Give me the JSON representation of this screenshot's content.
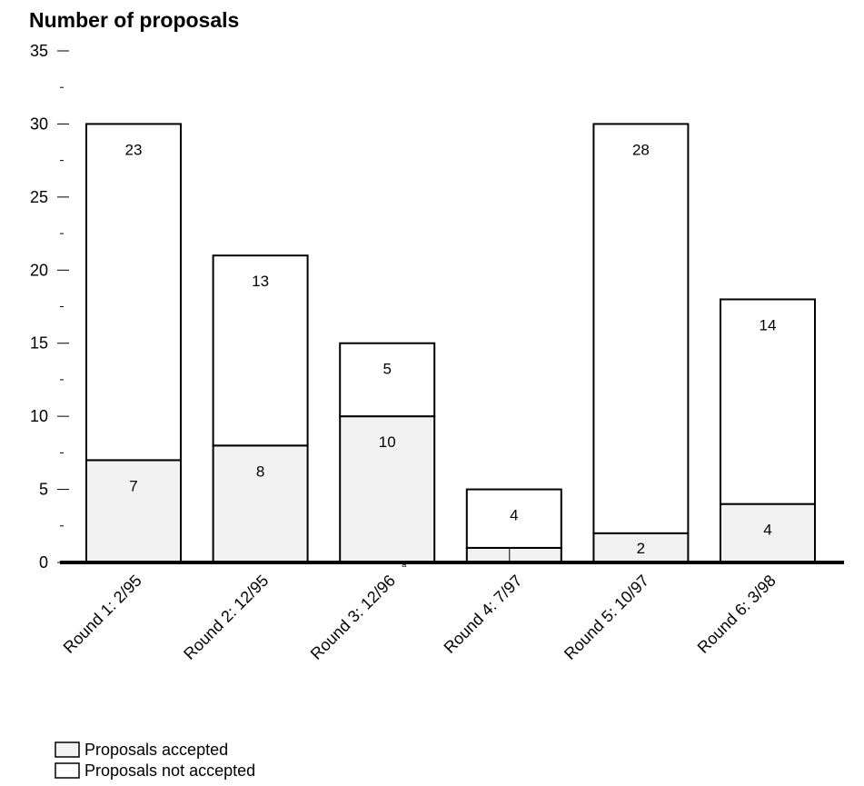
{
  "chart_data": {
    "type": "bar",
    "stacked": true,
    "title": "Number of proposals",
    "categories": [
      "Round 1: 2/95",
      "Round 2: 12/95",
      "Round 3: 12/96",
      "Round 4: 7/97",
      "Round 5: 10/97",
      "Round 6: 3/98"
    ],
    "category_footnotes": [
      "",
      "",
      "a",
      "",
      "",
      ""
    ],
    "series": [
      {
        "name": "Proposals accepted",
        "values": [
          7,
          8,
          10,
          1,
          2,
          4
        ],
        "labels": [
          "7",
          "8",
          "10",
          "",
          "2",
          "4"
        ],
        "color": "#f2f2f2"
      },
      {
        "name": "Proposals not accepted",
        "values": [
          23,
          13,
          5,
          4,
          28,
          14
        ],
        "labels": [
          "23",
          "13",
          "5",
          "4",
          "28",
          "14"
        ],
        "color": "#ffffff"
      }
    ],
    "ylim": [
      0,
      35
    ],
    "yticks": [
      0,
      5,
      10,
      15,
      20,
      25,
      30,
      35
    ],
    "ytick_labels": [
      "0",
      "5",
      "10",
      "15",
      "20",
      "25",
      "30",
      "35"
    ],
    "xlabel": "",
    "ylabel": "",
    "legend_position": "bottom-left",
    "grid": false
  }
}
